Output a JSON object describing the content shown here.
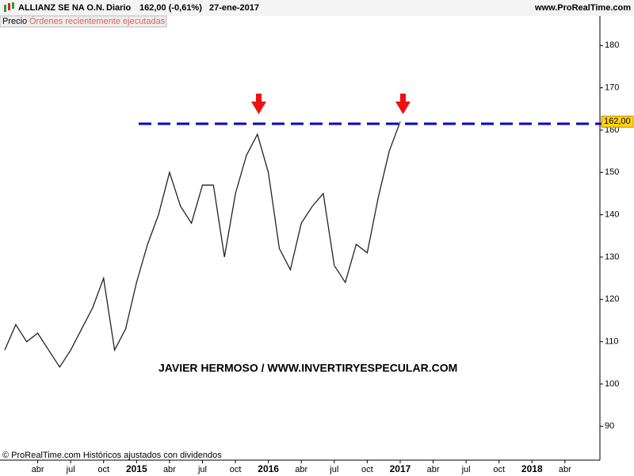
{
  "chart_data": {
    "type": "line",
    "header": {
      "instrument": "ALLIANZ SE NA O.N.",
      "period": "Diario",
      "quote": "162,00 (-0,61%)",
      "date": "27-ene-2017",
      "site": "www.ProRealTime.com"
    },
    "panel_label": "Órdenes recientemente ejecutadas",
    "watermark": "JAVIER HERMOSO / WWW.INVERTIRYESPECULAR.COM",
    "footer": "© ProRealTime.com Históricos ajustados con dividendos",
    "categories": [
      null,
      null,
      null,
      "abr",
      null,
      null,
      "jul",
      null,
      null,
      "oct",
      null,
      null,
      "2015",
      null,
      null,
      "abr",
      null,
      null,
      "jul",
      null,
      null,
      "oct",
      null,
      null,
      "2016",
      null,
      null,
      "abr",
      null,
      null,
      "jul",
      null,
      null,
      "oct",
      null,
      null,
      "2017",
      null,
      null,
      "abr",
      null,
      null,
      "jul",
      null,
      null,
      "oct",
      null,
      null,
      "2018",
      null,
      null,
      "abr",
      null,
      null
    ],
    "series": [
      {
        "name": "Precio",
        "color": "#222222",
        "values": [
          108,
          114,
          110,
          112,
          108,
          104,
          108,
          113,
          118,
          125,
          108,
          113,
          124,
          133,
          140,
          150,
          142,
          138,
          147,
          147,
          130,
          145,
          154,
          159,
          150,
          132,
          127,
          138,
          142,
          145,
          128,
          124,
          133,
          131,
          144,
          155,
          162,
          null,
          null,
          null,
          null,
          null,
          null,
          null,
          null,
          null,
          null,
          null,
          null,
          null,
          null,
          null,
          null,
          null
        ]
      }
    ],
    "resistance": {
      "value": 161.5,
      "color": "#0000cc"
    },
    "last_price": {
      "value": 162,
      "label": "162,00"
    },
    "ylim": [
      82,
      187
    ],
    "yticks": [
      90,
      100,
      110,
      120,
      130,
      140,
      150,
      160,
      170,
      180
    ]
  }
}
